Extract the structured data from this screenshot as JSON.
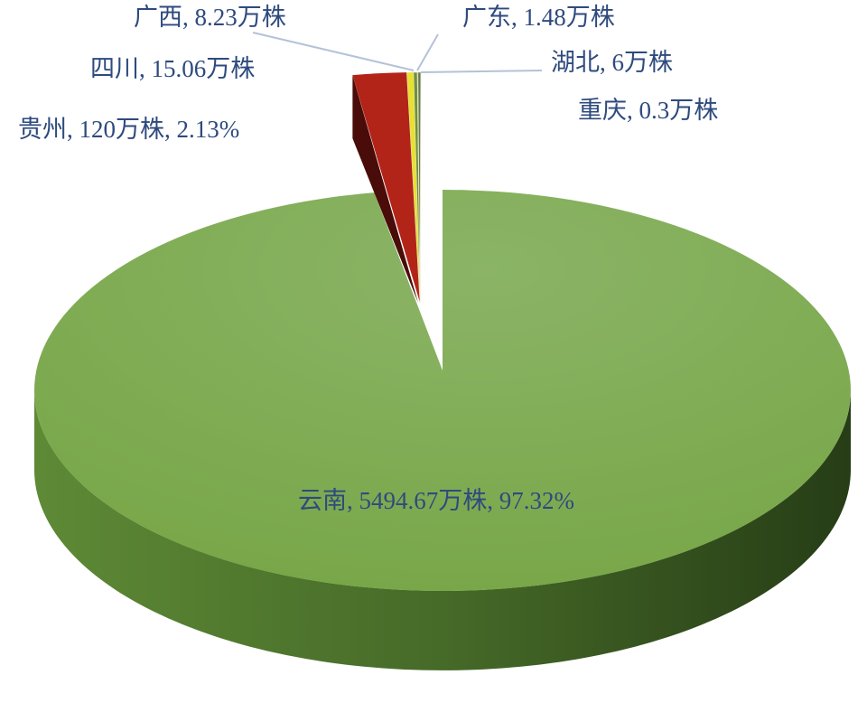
{
  "chart_data": {
    "type": "pie",
    "style": "3d-exploded",
    "unit": "万株",
    "slices": [
      {
        "name": "云南",
        "value": 5494.67,
        "percent": 97.32,
        "color": "#7aa84c",
        "label": "云南, 5494.67万株, 97.32%"
      },
      {
        "name": "贵州",
        "value": 120,
        "percent": 2.13,
        "color": "#b22418",
        "label": "贵州, 120万株, 2.13%"
      },
      {
        "name": "四川",
        "value": 15.06,
        "color": "#e8e030",
        "label": "四川, 15.06万株"
      },
      {
        "name": "广西",
        "value": 8.23,
        "color": "#6f8f3a",
        "label": "广西, 8.23万株"
      },
      {
        "name": "广东",
        "value": 1.48,
        "color": "#c9b25a",
        "label": "广东, 1.48万株"
      },
      {
        "name": "湖北",
        "value": 6,
        "color": "#5f7a5a",
        "label": "湖北, 6万株"
      },
      {
        "name": "重庆",
        "value": 0.3,
        "color": "#8aa0b8",
        "label": "重庆, 0.3万株"
      }
    ]
  }
}
